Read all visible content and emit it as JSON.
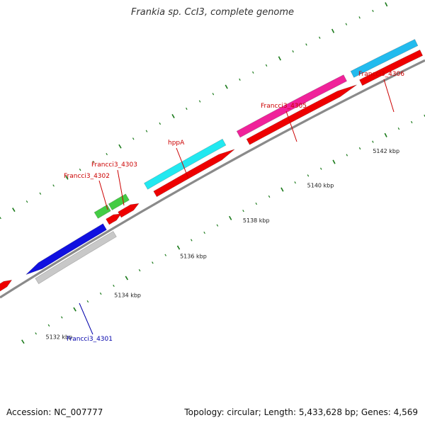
{
  "header": {
    "title": "Frankia sp. CcI3, complete genome"
  },
  "footer": {
    "accession": "Accession: NC_007777",
    "summary": "Topology: circular; Length: 5,433,628 bp; Genes: 4,569"
  },
  "colors": {
    "backbone": "#8a8a8a",
    "tick": "#1a7a1a",
    "label_red": "#cc0000",
    "label_blue": "#0000aa"
  },
  "scale_labels": [
    "5132 kbp",
    "5134 kbp",
    "5136 kbp",
    "5138 kbp",
    "5140 kbp",
    "5142 kbp"
  ],
  "genes": [
    {
      "name": "Francci3_4301",
      "color": "#1010e0",
      "label_color": "#0000aa"
    },
    {
      "name": "Francci3_4302",
      "color": "#44cc44",
      "label_color": "#cc0000"
    },
    {
      "name": "Francci3_4303",
      "color": "#44cc44",
      "label_color": "#cc0000"
    },
    {
      "name": "hppA",
      "color": "#22e8f0",
      "label_color": "#cc0000"
    },
    {
      "name": "Francci3_4305",
      "color": "#f0229a",
      "label_color": "#cc0000"
    },
    {
      "name": "Francci3_4306",
      "color": "#22bbee",
      "label_color": "#cc0000"
    }
  ]
}
